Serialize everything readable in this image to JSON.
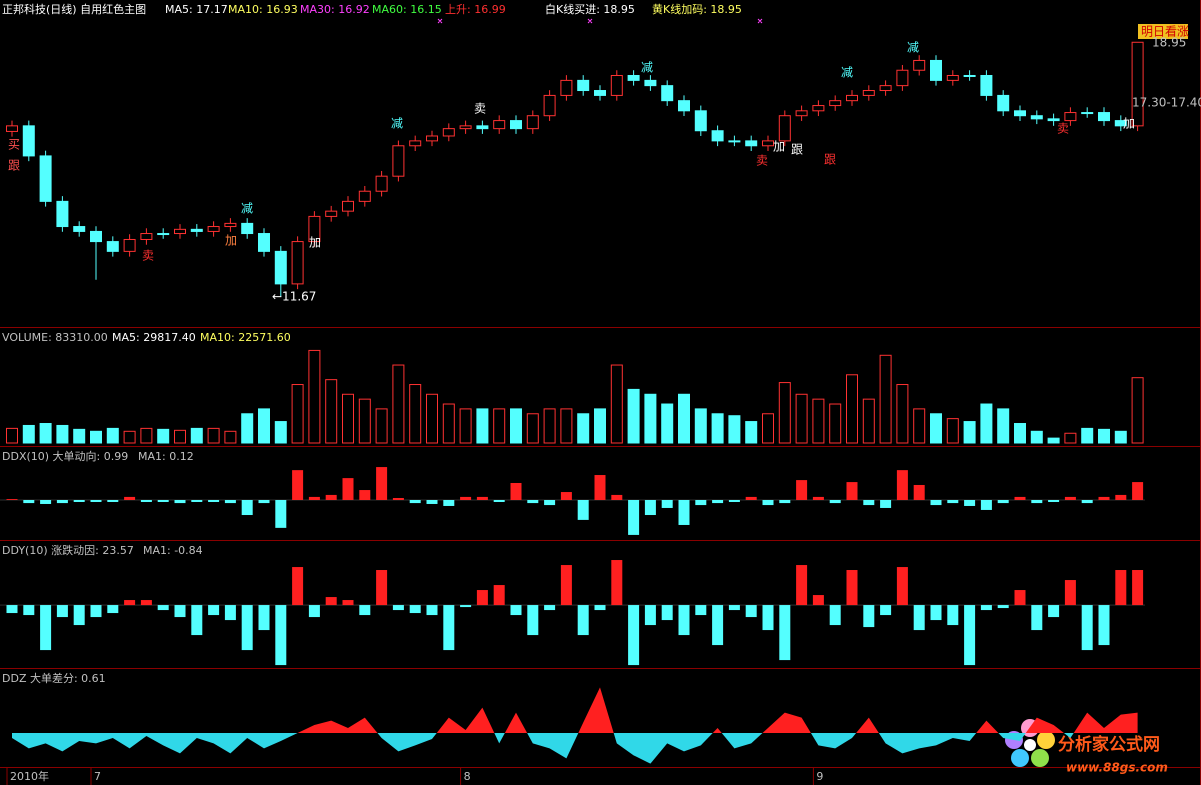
{
  "chart_data": [
    {
      "type": "candlestick",
      "legend": [
        {
          "label": "正邦科技(日线) 自用红色主图",
          "color": "#ffffff"
        },
        {
          "label": "MA5: 17.17",
          "color": "#ffffff"
        },
        {
          "label": "MA10: 16.93",
          "color": "#ffff60"
        },
        {
          "label": "MA30: 16.92",
          "color": "#ff40ff"
        },
        {
          "label": "MA60: 16.15",
          "color": "#40ff40"
        },
        {
          "label": "上升: 16.99",
          "color": "#ff3030"
        },
        {
          "label": "白K线买进: 18.95",
          "color": "#ffffff"
        },
        {
          "label": "黄K线加码: 18.95",
          "color": "#ffff60"
        }
      ],
      "categories": [
        "2010年",
        null,
        null,
        null,
        null,
        "7",
        null,
        null,
        null,
        null,
        null,
        null,
        null,
        null,
        null,
        null,
        null,
        null,
        null,
        null,
        null,
        null,
        null,
        null,
        null,
        null,
        null,
        "8",
        null,
        null,
        null,
        null,
        null,
        null,
        null,
        null,
        null,
        null,
        null,
        null,
        null,
        null,
        null,
        null,
        null,
        null,
        null,
        null,
        "9",
        null,
        null,
        null,
        null,
        null,
        null,
        null,
        null,
        null,
        null,
        null,
        null,
        null,
        null,
        null,
        null,
        null,
        null,
        null
      ],
      "open": [
        16.4,
        16.56,
        15.7,
        14.4,
        13.68,
        13.54,
        13.25,
        12.97,
        13.31,
        13.48,
        13.48,
        13.6,
        13.54,
        13.68,
        13.77,
        13.48,
        12.97,
        12.04,
        13.25,
        13.97,
        14.12,
        14.4,
        14.69,
        15.12,
        15.99,
        16.13,
        16.27,
        16.48,
        16.56,
        16.48,
        16.71,
        16.48,
        16.85,
        17.43,
        17.86,
        17.57,
        17.43,
        18.0,
        17.86,
        17.71,
        17.28,
        16.99,
        16.42,
        16.13,
        16.13,
        15.99,
        16.13,
        16.85,
        16.99,
        17.14,
        17.28,
        17.43,
        17.57,
        17.71,
        18.15,
        18.43,
        17.86,
        18.0,
        18.0,
        17.43,
        16.99,
        16.85,
        16.76,
        16.71,
        16.94,
        16.94,
        16.71,
        16.56
      ],
      "high": [
        16.71,
        16.71,
        15.85,
        14.55,
        13.83,
        13.69,
        13.4,
        13.46,
        13.63,
        13.63,
        13.75,
        13.75,
        13.83,
        13.92,
        13.92,
        13.63,
        13.12,
        13.4,
        14.12,
        14.27,
        14.55,
        14.84,
        15.27,
        16.14,
        16.28,
        16.42,
        16.63,
        16.71,
        16.71,
        16.86,
        16.86,
        17.0,
        17.58,
        18.01,
        18.01,
        17.72,
        18.15,
        18.15,
        18.01,
        17.86,
        17.43,
        17.14,
        16.57,
        16.28,
        16.28,
        16.28,
        17.0,
        17.14,
        17.29,
        17.43,
        17.58,
        17.72,
        17.86,
        18.3,
        18.58,
        18.58,
        18.15,
        18.15,
        18.15,
        17.58,
        17.14,
        17.0,
        16.91,
        17.09,
        17.09,
        17.09,
        16.86,
        18.95
      ],
      "low": [
        16.25,
        15.55,
        14.25,
        13.53,
        13.39,
        12.16,
        12.82,
        12.82,
        13.16,
        13.33,
        13.33,
        13.39,
        13.39,
        13.53,
        13.33,
        12.82,
        11.67,
        11.89,
        13.1,
        13.82,
        13.97,
        14.25,
        14.54,
        14.97,
        15.84,
        15.98,
        16.12,
        16.33,
        16.33,
        16.33,
        16.33,
        16.33,
        16.7,
        17.28,
        17.42,
        17.28,
        17.28,
        17.71,
        17.56,
        17.13,
        16.84,
        16.27,
        15.98,
        15.98,
        15.84,
        15.84,
        15.98,
        16.7,
        16.84,
        16.99,
        17.13,
        17.28,
        17.42,
        17.56,
        18.0,
        17.71,
        17.71,
        17.85,
        17.28,
        16.84,
        16.7,
        16.61,
        16.56,
        16.56,
        16.79,
        16.56,
        16.41,
        16.41
      ],
      "close": [
        16.56,
        15.7,
        14.4,
        13.68,
        13.54,
        13.25,
        12.97,
        13.31,
        13.48,
        13.48,
        13.6,
        13.54,
        13.68,
        13.77,
        13.48,
        12.97,
        12.04,
        13.25,
        13.97,
        14.12,
        14.4,
        14.69,
        15.12,
        15.99,
        16.13,
        16.27,
        16.48,
        16.56,
        16.48,
        16.71,
        16.48,
        16.85,
        17.43,
        17.86,
        17.57,
        17.43,
        18.0,
        17.86,
        17.71,
        17.28,
        16.99,
        16.42,
        16.13,
        16.13,
        15.99,
        16.13,
        16.85,
        16.99,
        17.14,
        17.28,
        17.43,
        17.57,
        17.71,
        18.15,
        18.43,
        17.86,
        18.0,
        18.0,
        17.43,
        16.99,
        16.85,
        16.76,
        16.71,
        16.94,
        16.94,
        16.71,
        16.56,
        18.95
      ],
      "up_color": "#ff3232",
      "down_color": "#54ffff",
      "ylim": [
        10.95,
        19.73
      ],
      "annotations": [
        {
          "text": "买",
          "color": "#ff5050"
        },
        {
          "text": "跟",
          "color": "#ff5050"
        },
        {
          "text": "卖",
          "color": "#ff3030"
        },
        {
          "text": "加",
          "color": "#ff8040"
        },
        {
          "text": "减",
          "color": "#54ffff"
        },
        {
          "text": "加",
          "color": "#ffffff"
        },
        {
          "text": "←11.67",
          "color": "#ffffff"
        },
        {
          "text": "减",
          "color": "#54ffff"
        },
        {
          "text": "卖",
          "color": "#ffffff"
        },
        {
          "text": "减",
          "color": "#54ffff"
        },
        {
          "text": "卖",
          "color": "#ff3030"
        },
        {
          "text": "加",
          "color": "#ffffff"
        },
        {
          "text": "跟",
          "color": "#ffffff"
        },
        {
          "text": "跟",
          "color": "#ff3030"
        },
        {
          "text": "减",
          "color": "#54ffff"
        },
        {
          "text": "减",
          "color": "#54ffff"
        },
        {
          "text": "卖",
          "color": "#ff3030"
        },
        {
          "text": "加",
          "color": "#ffffff"
        },
        {
          "text": "明日看涨",
          "color": "#d00000"
        },
        {
          "text": "18.95",
          "color": "#c0c0c0"
        },
        {
          "text": "17.30-17.40",
          "color": "#c0c0c0"
        }
      ]
    },
    {
      "type": "volume",
      "legend": [
        {
          "label": "VOLUME: 83310.00",
          "color": "#c0c0c0"
        },
        {
          "label": "MA5: 29817.40",
          "color": "#ffffff"
        },
        {
          "label": "MA10: 22571.60",
          "color": "#ffff60"
        }
      ],
      "values": [
        18645,
        22374,
        24860,
        22374,
        17402,
        14916,
        18645,
        14916,
        18645,
        17402,
        16159,
        18645,
        18645,
        14916,
        37290,
        43505,
        27346,
        74580,
        118085,
        80795,
        62150,
        55935,
        43505,
        99440,
        74580,
        62150,
        49720,
        43505,
        43505,
        43505,
        43505,
        37290,
        43505,
        43505,
        37290,
        43505,
        99440,
        68365,
        62150,
        49720,
        62150,
        43505,
        37290,
        34804,
        27346,
        37290,
        77066,
        62150,
        55935,
        49720,
        87010,
        55935,
        111870,
        74580,
        43505,
        37290,
        31075,
        27346,
        49720,
        43505,
        24860,
        14916,
        6215,
        12430,
        18645,
        17402,
        14916,
        83310
      ],
      "ylim": [
        0,
        125000
      ]
    },
    {
      "type": "signed-bar",
      "legend": [
        {
          "label": "DDX(10) 大单动向: 0.99",
          "color": "#c0c0c0"
        },
        {
          "label": "MA1: 0.12",
          "color": "#c0c0c0"
        }
      ],
      "values": [
        0.05,
        -0.17,
        -0.22,
        -0.17,
        -0.11,
        -0.11,
        -0.11,
        0.17,
        -0.11,
        -0.11,
        -0.17,
        -0.11,
        -0.11,
        -0.17,
        -0.83,
        -0.17,
        -1.54,
        1.65,
        0.17,
        0.28,
        1.21,
        0.55,
        1.82,
        0.11,
        -0.17,
        -0.22,
        -0.33,
        0.17,
        0.17,
        -0.11,
        0.94,
        -0.17,
        -0.28,
        0.44,
        -1.1,
        1.38,
        0.28,
        -1.93,
        -0.83,
        -0.44,
        -1.38,
        -0.28,
        -0.17,
        -0.11,
        0.17,
        -0.28,
        -0.17,
        1.1,
        0.17,
        -0.17,
        0.99,
        -0.28,
        -0.44,
        1.65,
        0.83,
        -0.28,
        -0.17,
        -0.33,
        -0.55,
        -0.17,
        0.17,
        -0.17,
        -0.11,
        0.17,
        -0.17,
        0.17,
        0.28,
        0.99
      ],
      "ylim": [
        -2.1,
        2.1
      ],
      "up_color": "#ff2020",
      "down_color": "#54ffff"
    },
    {
      "type": "signed-bar",
      "legend": [
        {
          "label": "DDY(10) 涨跌动因: 23.57",
          "color": "#c0c0c0"
        },
        {
          "label": "MA1: -0.84",
          "color": "#c0c0c0"
        }
      ],
      "values": [
        -5.38,
        -6.73,
        -30.29,
        -8.08,
        -13.46,
        -8.08,
        -5.38,
        3.37,
        3.37,
        -3.37,
        -8.08,
        -20.19,
        -6.73,
        -10.1,
        -30.29,
        -16.83,
        -40.38,
        25.57,
        -8.08,
        5.38,
        3.37,
        -6.73,
        23.57,
        -3.37,
        -5.38,
        -6.73,
        -30.29,
        -1.35,
        10.1,
        13.46,
        -6.73,
        -20.19,
        -3.37,
        26.92,
        -20.19,
        -3.37,
        30.29,
        -40.38,
        -13.46,
        -10.1,
        -20.19,
        -6.73,
        -26.92,
        -3.37,
        -8.08,
        -16.83,
        -37.02,
        26.92,
        6.73,
        -13.46,
        23.57,
        -14.81,
        -6.73,
        25.57,
        -16.83,
        -10.1,
        -13.46,
        -40.38,
        -3.37,
        -2.02,
        10.1,
        -16.83,
        -8.08,
        16.83,
        -30.29,
        -26.92,
        23.57,
        23.57
      ],
      "ylim": [
        -41,
        33
      ],
      "up_color": "#ff2020",
      "down_color": "#54ffff"
    },
    {
      "type": "area",
      "legend": [
        {
          "label": "DDZ 大单差分: 0.61",
          "color": "#c0c0c0"
        }
      ],
      "values": [
        -0.15,
        -0.46,
        -0.31,
        -0.55,
        -0.24,
        -0.31,
        -0.15,
        -0.46,
        -0.09,
        -0.37,
        -0.61,
        -0.15,
        -0.31,
        -0.61,
        -0.15,
        -0.46,
        -0.24,
        0,
        0.24,
        0.37,
        0.15,
        0.46,
        -0.15,
        -0.55,
        -0.37,
        -0.18,
        0.46,
        0.09,
        0.76,
        -0.31,
        0.61,
        -0.31,
        -0.46,
        -0.76,
        0.31,
        1.37,
        -0.31,
        -0.67,
        -0.92,
        -0.31,
        -0.55,
        -0.37,
        0.15,
        -0.46,
        -0.31,
        0.15,
        0.61,
        0.46,
        -0.37,
        -0.46,
        -0.15,
        0.46,
        -0.31,
        -0.61,
        -0.46,
        -0.37,
        -0.15,
        -0.24,
        0.37,
        -0.15,
        -0.24,
        0.46,
        0.24,
        -0.15,
        0.61,
        0.15,
        0.55,
        0.61
      ],
      "ylim": [
        -0.96,
        1.5
      ],
      "up_color": "#ff2020",
      "down_color": "#30d8e8"
    }
  ],
  "watermark": {
    "title": "分析家公式网",
    "url": "www.88gs.com"
  }
}
